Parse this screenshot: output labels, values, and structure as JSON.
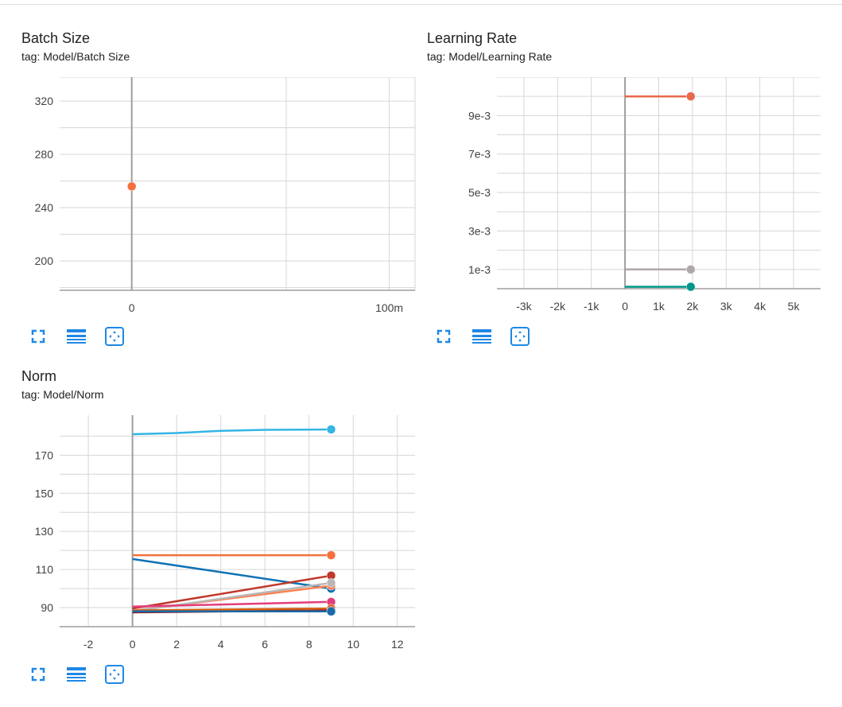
{
  "cards": [
    {
      "title": "Batch Size",
      "tag": "tag: Model/Batch Size",
      "buttons": {
        "fullscreen": "fullscreen-icon",
        "data_table": "data-table-icon",
        "fit_domain": "fit-domain-icon"
      }
    },
    {
      "title": "Learning Rate",
      "tag": "tag: Model/Learning Rate",
      "buttons": {
        "fullscreen": "fullscreen-icon",
        "data_table": "data-table-icon",
        "fit_domain": "fit-domain-icon"
      }
    },
    {
      "title": "Norm",
      "tag": "tag: Model/Norm",
      "buttons": {
        "fullscreen": "fullscreen-icon",
        "data_table": "data-table-icon",
        "fit_domain": "fit-domain-icon"
      }
    }
  ],
  "colors": {
    "accent": "#1e88e5",
    "axis": "#9e9e9e",
    "grid": "#d6d6d6"
  },
  "chart_data": [
    {
      "type": "line",
      "title": "Batch Size",
      "xlim": [
        -0.028,
        0.11
      ],
      "ylim": [
        178,
        338
      ],
      "x_ticks": [
        {
          "v": 0,
          "label": "0"
        },
        {
          "v": 0.1,
          "label": "100m"
        }
      ],
      "y_ticks": [
        {
          "v": 200,
          "label": "200"
        },
        {
          "v": 240,
          "label": "240"
        },
        {
          "v": 280,
          "label": "280"
        },
        {
          "v": 320,
          "label": "320"
        }
      ],
      "grid_x": [
        -0.07,
        -0.06,
        0,
        0.06,
        0.1,
        0.11
      ],
      "grid_y": [
        180,
        200,
        220,
        240,
        260,
        280,
        300,
        320,
        338
      ],
      "series": [
        {
          "color": "#f4703d",
          "points": [
            [
              0,
              256
            ]
          ]
        }
      ]
    },
    {
      "type": "line",
      "title": "Learning Rate",
      "xlim": [
        -3800,
        5800
      ],
      "ylim": [
        0,
        0.011
      ],
      "x_ticks": [
        {
          "v": -3000,
          "label": "-3k"
        },
        {
          "v": -2000,
          "label": "-2k"
        },
        {
          "v": -1000,
          "label": "-1k"
        },
        {
          "v": 0,
          "label": "0"
        },
        {
          "v": 1000,
          "label": "1k"
        },
        {
          "v": 2000,
          "label": "2k"
        },
        {
          "v": 3000,
          "label": "3k"
        },
        {
          "v": 4000,
          "label": "4k"
        },
        {
          "v": 5000,
          "label": "5k"
        }
      ],
      "y_ticks": [
        {
          "v": 0.001,
          "label": "1e-3"
        },
        {
          "v": 0.003,
          "label": "3e-3"
        },
        {
          "v": 0.005,
          "label": "5e-3"
        },
        {
          "v": 0.007,
          "label": "7e-3"
        },
        {
          "v": 0.009,
          "label": "9e-3"
        }
      ],
      "grid_x": [
        -3000,
        -2000,
        -1000,
        0,
        1000,
        2000,
        3000,
        4000,
        5000
      ],
      "grid_y": [
        0.001,
        0.002,
        0.003,
        0.004,
        0.005,
        0.006,
        0.007,
        0.008,
        0.009,
        0.01,
        0.011
      ],
      "series": [
        {
          "color": "#e8694a",
          "points": [
            [
              0,
              0.01
            ],
            [
              1950,
              0.01
            ]
          ]
        },
        {
          "color": "#b0a7a9",
          "points": [
            [
              0,
              0.001
            ],
            [
              1950,
              0.001
            ]
          ]
        },
        {
          "color": "#009688",
          "points": [
            [
              0,
              0.0001
            ],
            [
              1950,
              0.0001
            ]
          ]
        }
      ]
    },
    {
      "type": "line",
      "title": "Norm",
      "xlim": [
        -3.3,
        12.8
      ],
      "ylim": [
        80,
        191
      ],
      "x_ticks": [
        {
          "v": -2,
          "label": "-2"
        },
        {
          "v": 0,
          "label": "0"
        },
        {
          "v": 2,
          "label": "2"
        },
        {
          "v": 4,
          "label": "4"
        },
        {
          "v": 6,
          "label": "6"
        },
        {
          "v": 8,
          "label": "8"
        },
        {
          "v": 10,
          "label": "10"
        },
        {
          "v": 12,
          "label": "12"
        }
      ],
      "y_ticks": [
        {
          "v": 90,
          "label": "90"
        },
        {
          "v": 110,
          "label": "110"
        },
        {
          "v": 130,
          "label": "130"
        },
        {
          "v": 150,
          "label": "150"
        },
        {
          "v": 170,
          "label": "170"
        }
      ],
      "grid_x": [
        -2,
        0,
        2,
        4,
        6,
        8,
        10,
        12
      ],
      "grid_y": [
        80,
        90,
        100,
        110,
        120,
        130,
        140,
        150,
        160,
        170,
        180
      ],
      "series": [
        {
          "color": "#33b5e5",
          "points": [
            [
              0,
              181
            ],
            [
              2,
              181.6
            ],
            [
              4,
              182.8
            ],
            [
              6,
              183.3
            ],
            [
              9,
              183.5
            ]
          ]
        },
        {
          "color": "#f4703d",
          "points": [
            [
              0,
              117.5
            ],
            [
              9,
              117.5
            ]
          ]
        },
        {
          "color": "#0f72b5",
          "points": [
            [
              0,
              115.5
            ],
            [
              9,
              100
            ]
          ]
        },
        {
          "color": "#c0392b",
          "points": [
            [
              0,
              89.5
            ],
            [
              9,
              106.8
            ]
          ]
        },
        {
          "color": "#ff7f50",
          "points": [
            [
              0,
              88.3
            ],
            [
              9,
              101.5
            ]
          ]
        },
        {
          "color": "#b8b8b8",
          "points": [
            [
              0,
              88
            ],
            [
              9,
              103
            ]
          ]
        },
        {
          "color": "#e23d7a",
          "points": [
            [
              0,
              90.5
            ],
            [
              9,
              93
            ]
          ]
        },
        {
          "color": "#d95f0e",
          "points": [
            [
              0,
              88.5
            ],
            [
              9,
              89.5
            ]
          ]
        },
        {
          "color": "#8b1e1e",
          "points": [
            [
              0,
              87.5
            ],
            [
              9,
              88.5
            ]
          ]
        },
        {
          "color": "#1a6aa8",
          "points": [
            [
              0,
              88
            ],
            [
              9,
              88
            ]
          ]
        }
      ]
    }
  ]
}
